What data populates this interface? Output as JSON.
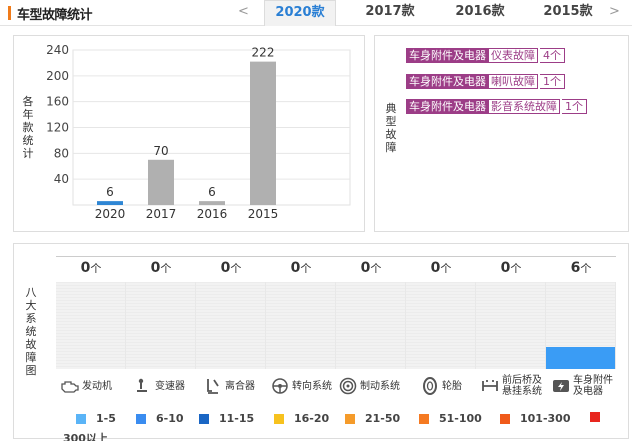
{
  "header": {
    "title": "车型故障统计",
    "prev": "<",
    "next": ">",
    "tabs": [
      {
        "label": "2020款",
        "active": true
      },
      {
        "label": "2017款",
        "active": false
      },
      {
        "label": "2016款",
        "active": false
      },
      {
        "label": "2015款",
        "active": false
      }
    ]
  },
  "year_panel": {
    "label": [
      "各",
      "年",
      "款",
      "统",
      "计"
    ]
  },
  "chart_data": {
    "type": "bar",
    "categories": [
      "2020",
      "2017",
      "2016",
      "2015"
    ],
    "values": [
      6,
      70,
      6,
      222
    ],
    "value_labels": [
      "6",
      "70",
      "6",
      "222"
    ],
    "yticks": [
      "40",
      "80",
      "120",
      "160",
      "200",
      "240"
    ],
    "ylim": [
      0,
      240
    ],
    "grid": true,
    "colors": [
      "#2f86d4",
      "#b0b0b0",
      "#b0b0b0",
      "#b0b0b0"
    ]
  },
  "typical_faults": {
    "label": [
      "典",
      "型",
      "故",
      "障"
    ],
    "items": [
      {
        "category": "车身附件及电器",
        "name": "仪表故障",
        "count": "4个"
      },
      {
        "category": "车身附件及电器",
        "name": "喇叭故障",
        "count": "1个"
      },
      {
        "category": "车身附件及电器",
        "name": "影音系统故障",
        "count": "1个"
      }
    ]
  },
  "systems_panel": {
    "label": [
      "八",
      "大",
      "系",
      "统",
      "故",
      "障",
      "图"
    ],
    "systems": [
      {
        "name": "发动机",
        "count": "0",
        "unit": "个",
        "level": 0,
        "icon": "engine-icon"
      },
      {
        "name": "变速器",
        "count": "0",
        "unit": "个",
        "level": 0,
        "icon": "gearbox-icon"
      },
      {
        "name": "离合器",
        "count": "0",
        "unit": "个",
        "level": 0,
        "icon": "clutch-icon"
      },
      {
        "name": "转向系统",
        "count": "0",
        "unit": "个",
        "level": 0,
        "icon": "steering-icon"
      },
      {
        "name": "制动系统",
        "count": "0",
        "unit": "个",
        "level": 0,
        "icon": "brake-icon"
      },
      {
        "name": "轮胎",
        "count": "0",
        "unit": "个",
        "level": 0,
        "icon": "tire-icon"
      },
      {
        "name": "前后桥及悬挂系统",
        "name_lines": [
          "前后桥及",
          "悬挂系统"
        ],
        "count": "0",
        "unit": "个",
        "level": 0,
        "icon": "suspension-icon"
      },
      {
        "name": "车身附件及电器",
        "name_lines": [
          "车身附件",
          "及电器"
        ],
        "count": "6",
        "unit": "个",
        "level": 0.25,
        "icon": "electrics-icon"
      }
    ],
    "legend": [
      {
        "label": "1-5",
        "color": "#5ab4f7"
      },
      {
        "label": "6-10",
        "color": "#3a8cf0"
      },
      {
        "label": "11-15",
        "color": "#1a66c4"
      },
      {
        "label": "16-20",
        "color": "#f7c21e"
      },
      {
        "label": "21-50",
        "color": "#f59b2a"
      },
      {
        "label": "51-100",
        "color": "#f57a22"
      },
      {
        "label": "101-300",
        "color": "#f05a1a"
      },
      {
        "label": "300以上",
        "color": "#e8261e"
      }
    ]
  }
}
